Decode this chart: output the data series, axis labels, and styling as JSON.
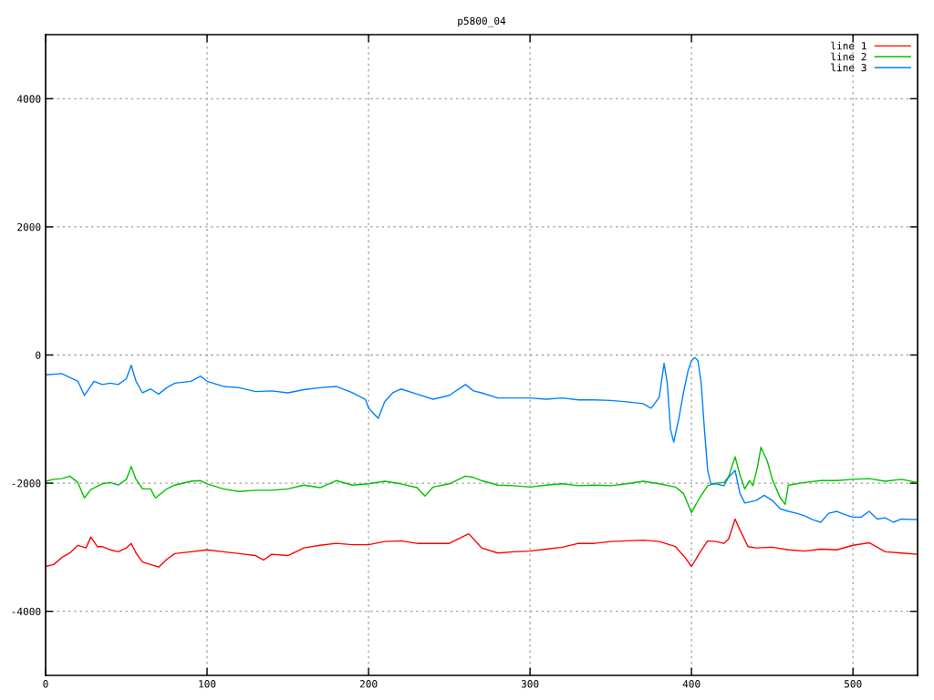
{
  "chart_data": {
    "type": "line",
    "title": "p5800_04",
    "xlim": [
      0,
      540
    ],
    "ylim": [
      -5000,
      5000
    ],
    "xticks": [
      0,
      100,
      200,
      300,
      400,
      500
    ],
    "yticks": [
      -4000,
      -2000,
      0,
      2000,
      4000
    ],
    "grid": true,
    "legend": "top right",
    "line_style": "solid",
    "marker": "none",
    "series": [
      {
        "name": "line 1",
        "color": "#ff0000",
        "x": [
          0,
          5,
          10,
          15,
          20,
          25,
          28,
          32,
          35,
          40,
          45,
          50,
          53,
          56,
          60,
          65,
          70,
          75,
          80,
          90,
          100,
          110,
          120,
          130,
          135,
          140,
          150,
          160,
          170,
          180,
          190,
          200,
          210,
          220,
          230,
          240,
          250,
          262,
          265,
          270,
          280,
          290,
          300,
          310,
          320,
          330,
          340,
          350,
          360,
          370,
          380,
          390,
          396,
          400,
          405,
          410,
          415,
          420,
          423,
          427,
          430,
          435,
          440,
          450,
          460,
          470,
          480,
          490,
          500,
          510,
          515,
          520,
          530,
          540
        ],
        "values": [
          -3300,
          -3270,
          -3160,
          -3090,
          -2970,
          -3010,
          -2840,
          -2990,
          -2990,
          -3040,
          -3070,
          -3010,
          -2940,
          -3090,
          -3230,
          -3270,
          -3310,
          -3190,
          -3100,
          -3070,
          -3040,
          -3070,
          -3100,
          -3130,
          -3200,
          -3110,
          -3130,
          -3010,
          -2970,
          -2940,
          -2960,
          -2960,
          -2910,
          -2900,
          -2940,
          -2940,
          -2940,
          -2790,
          -2870,
          -3010,
          -3090,
          -3070,
          -3060,
          -3030,
          -3000,
          -2940,
          -2940,
          -2910,
          -2900,
          -2890,
          -2910,
          -2990,
          -3160,
          -3300,
          -3090,
          -2900,
          -2910,
          -2940,
          -2870,
          -2560,
          -2730,
          -2990,
          -3010,
          -3000,
          -3040,
          -3060,
          -3030,
          -3040,
          -2970,
          -2930,
          -3000,
          -3070,
          -3090,
          -3110
        ]
      },
      {
        "name": "line 2",
        "color": "#00c000",
        "x": [
          0,
          5,
          10,
          15,
          20,
          24,
          28,
          35,
          40,
          45,
          50,
          53,
          56,
          60,
          65,
          68,
          75,
          80,
          90,
          96,
          100,
          110,
          120,
          130,
          140,
          150,
          160,
          170,
          180,
          190,
          200,
          210,
          220,
          230,
          235,
          240,
          250,
          260,
          265,
          270,
          280,
          290,
          300,
          310,
          320,
          330,
          340,
          350,
          360,
          370,
          380,
          390,
          395,
          400,
          405,
          410,
          415,
          420,
          423,
          427,
          430,
          433,
          436,
          438,
          441,
          443,
          447,
          450,
          455,
          458,
          460,
          470,
          480,
          490,
          500,
          510,
          520,
          530,
          540
        ],
        "values": [
          -1970,
          -1940,
          -1930,
          -1890,
          -1990,
          -2230,
          -2100,
          -2010,
          -1990,
          -2030,
          -1940,
          -1740,
          -1940,
          -2090,
          -2090,
          -2230,
          -2090,
          -2030,
          -1970,
          -1960,
          -2010,
          -2090,
          -2130,
          -2110,
          -2110,
          -2090,
          -2030,
          -2070,
          -1960,
          -2030,
          -2010,
          -1970,
          -2010,
          -2070,
          -2200,
          -2060,
          -2010,
          -1890,
          -1910,
          -1960,
          -2030,
          -2040,
          -2060,
          -2030,
          -2010,
          -2040,
          -2030,
          -2040,
          -2010,
          -1970,
          -2010,
          -2060,
          -2160,
          -2460,
          -2230,
          -2040,
          -2000,
          -1990,
          -1900,
          -1590,
          -1870,
          -2090,
          -1960,
          -2040,
          -1730,
          -1440,
          -1660,
          -1940,
          -2230,
          -2330,
          -2030,
          -1990,
          -1960,
          -1960,
          -1940,
          -1930,
          -1970,
          -1940,
          -1990
        ]
      },
      {
        "name": "line 3",
        "color": "#0080ff",
        "x": [
          0,
          10,
          20,
          24,
          30,
          35,
          40,
          45,
          50,
          53,
          56,
          60,
          65,
          70,
          75,
          80,
          90,
          96,
          100,
          110,
          120,
          130,
          140,
          150,
          160,
          170,
          180,
          190,
          198,
          200,
          206,
          210,
          215,
          220,
          230,
          240,
          250,
          260,
          265,
          270,
          280,
          290,
          300,
          310,
          320,
          330,
          340,
          350,
          360,
          370,
          375,
          380,
          383,
          385,
          387,
          389,
          392,
          395,
          398,
          400,
          402,
          404,
          406,
          408,
          410,
          412,
          415,
          420,
          423,
          427,
          430,
          433,
          440,
          445,
          450,
          455,
          460,
          465,
          470,
          475,
          480,
          485,
          490,
          495,
          500,
          505,
          510,
          515,
          520,
          525,
          530,
          540
        ],
        "values": [
          -310,
          -290,
          -410,
          -630,
          -410,
          -460,
          -440,
          -460,
          -370,
          -160,
          -410,
          -590,
          -530,
          -610,
          -510,
          -440,
          -410,
          -330,
          -410,
          -490,
          -510,
          -570,
          -560,
          -590,
          -540,
          -510,
          -490,
          -590,
          -690,
          -830,
          -990,
          -730,
          -590,
          -530,
          -610,
          -690,
          -630,
          -460,
          -560,
          -590,
          -670,
          -670,
          -670,
          -690,
          -670,
          -700,
          -700,
          -710,
          -730,
          -760,
          -830,
          -660,
          -130,
          -440,
          -1160,
          -1360,
          -1010,
          -590,
          -230,
          -90,
          -40,
          -90,
          -440,
          -1160,
          -1800,
          -2010,
          -2010,
          -2040,
          -1910,
          -1800,
          -2160,
          -2310,
          -2270,
          -2190,
          -2270,
          -2400,
          -2440,
          -2470,
          -2510,
          -2570,
          -2610,
          -2470,
          -2440,
          -2490,
          -2530,
          -2530,
          -2440,
          -2560,
          -2540,
          -2610,
          -2560,
          -2570
        ]
      }
    ]
  }
}
